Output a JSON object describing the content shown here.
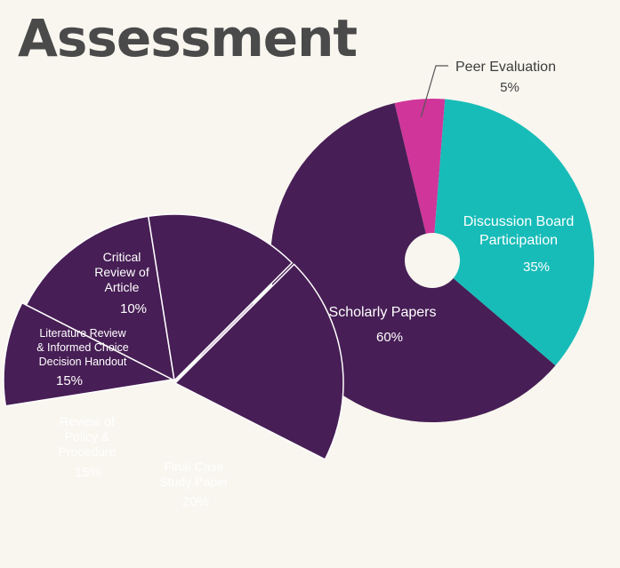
{
  "title": "Assessment",
  "colors": {
    "background": "#f8f6ef",
    "purple": "#471e55",
    "teal": "#17bcb8",
    "magenta": "#d0359a",
    "arrow": "#cfb4d8",
    "title": "#4a4a4a"
  },
  "chart_data": [
    {
      "type": "pie",
      "title": "",
      "slices": [
        {
          "label": "Peer Evaluation",
          "value": 5,
          "display": "5%",
          "color": "#d0359a"
        },
        {
          "label": "Discussion Board Participation",
          "label_lines": [
            "Discussion Board",
            "Participation"
          ],
          "value": 35,
          "display": "35%",
          "color": "#17bcb8"
        },
        {
          "label": "Scholarly Papers",
          "label_lines": [
            "Scholarly Papers"
          ],
          "value": 60,
          "display": "60%",
          "color": "#471e55"
        }
      ]
    },
    {
      "type": "pie",
      "title": "",
      "breakdown_of": "Scholarly Papers",
      "slices": [
        {
          "label": "Critical Review of Article",
          "label_lines": [
            "Critical",
            "Review of",
            "Article"
          ],
          "value": 10,
          "display": "10%",
          "color": "#471e55"
        },
        {
          "label": "Literature Review & Informed Choice Decision Handout",
          "label_lines": [
            "Literature Review",
            "& Informed Choice",
            "Decision Handout"
          ],
          "value": 15,
          "display": "15%",
          "color": "#471e55"
        },
        {
          "label": "Review of Policy & Procedure",
          "label_lines": [
            "Review of",
            "Policy &",
            "Procedure"
          ],
          "value": 15,
          "display": "15%",
          "color": "#471e55"
        },
        {
          "label": "Final Case Study Paper",
          "label_lines": [
            "Final Case",
            "Study Paper"
          ],
          "value": 20,
          "display": "20%",
          "color": "#471e55"
        }
      ]
    }
  ]
}
